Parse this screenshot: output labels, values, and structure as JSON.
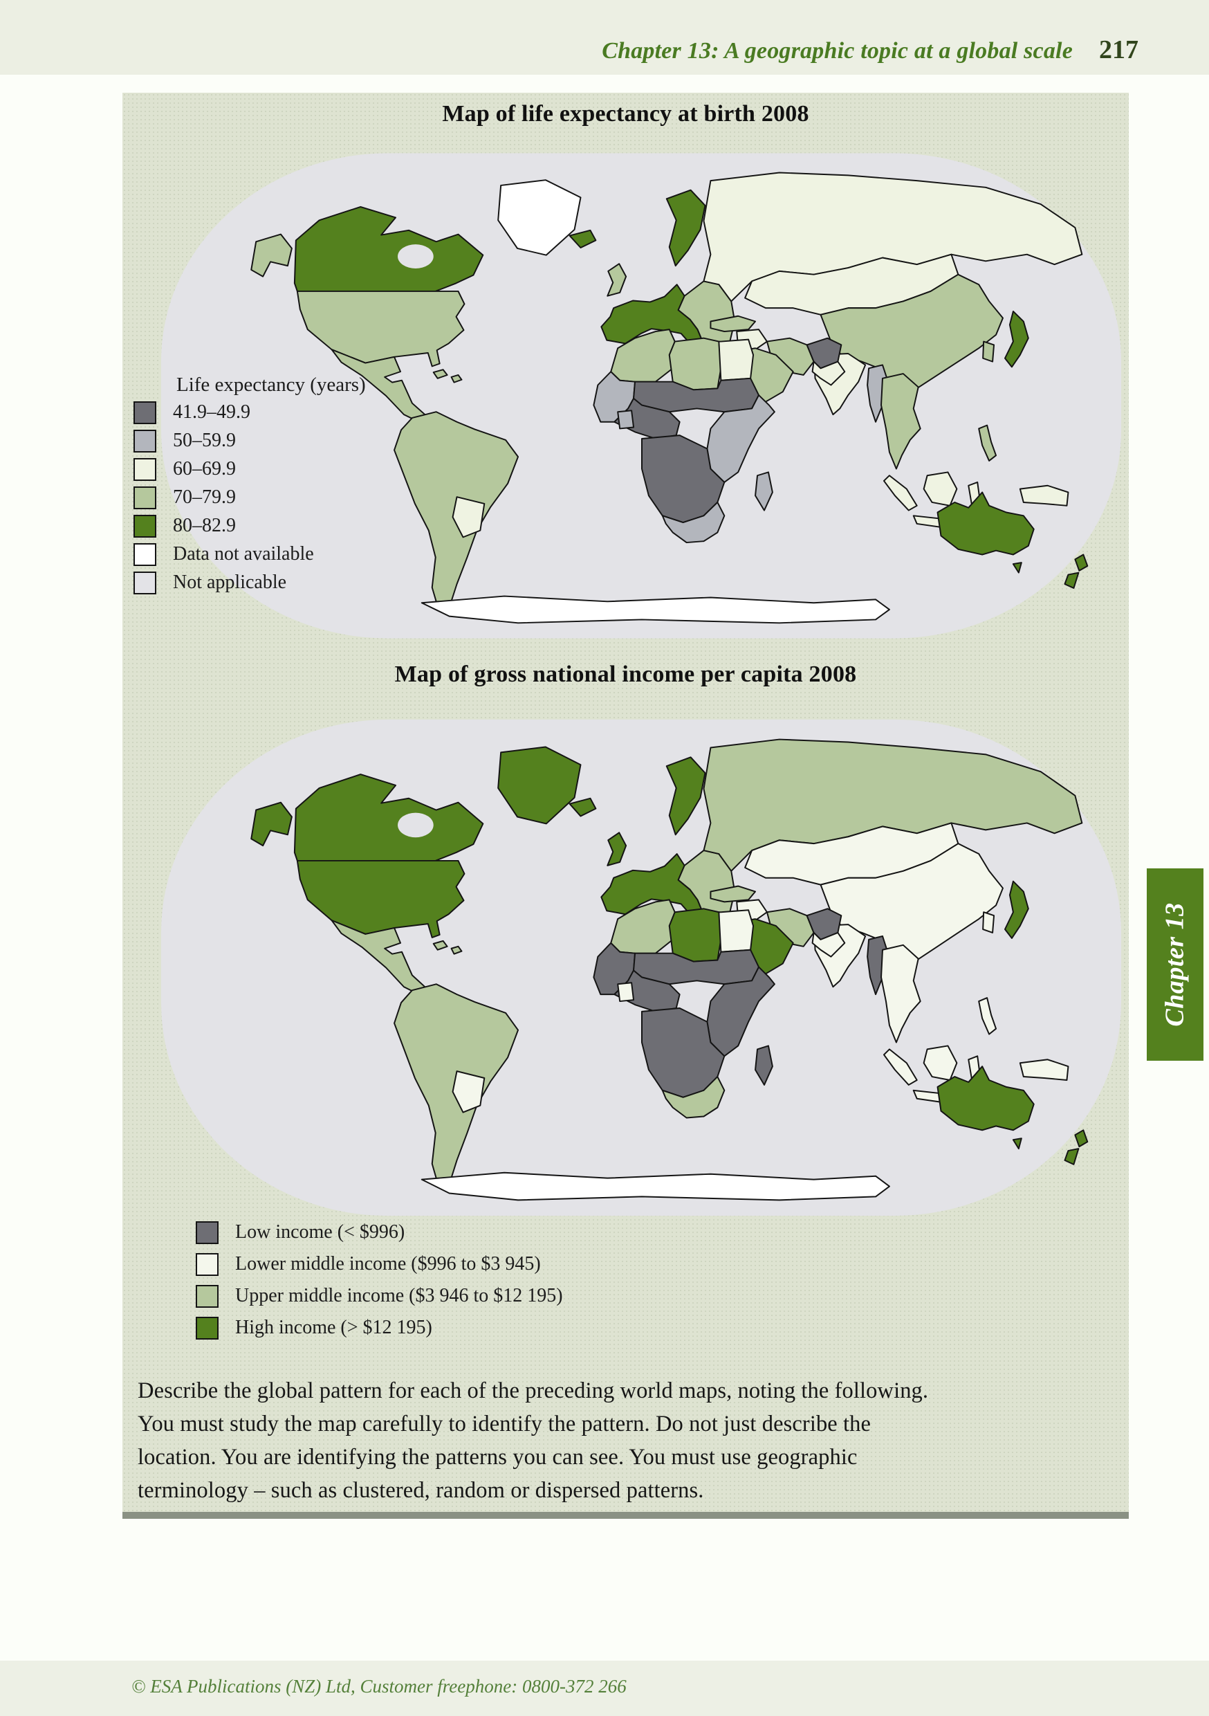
{
  "page": {
    "header": {
      "title": "Chapter 13: A geographic topic at a global scale",
      "page_number": "217"
    },
    "chapter_tab": {
      "label": "Chapter 13"
    },
    "instructions": {
      "lines": [
        "Describe the global pattern for each of the preceding world maps, noting the following.",
        "You must study the map carefully to identify the pattern. Do not just describe the",
        "location. You are identifying the patterns you can see. You must use geographic",
        "terminology – such as clustered, random or dispersed patterns."
      ]
    },
    "footer": {
      "text": "© ESA Publications (NZ) Ltd, Customer freephone: 0800-372 266"
    }
  },
  "colors": {
    "ocean": "#e3e3e7",
    "panel_background": "#dee3d1",
    "accent_green": "#54811e",
    "header_text": "#4a7b22"
  },
  "chart_data": [
    {
      "type": "choropleth_map",
      "title": "Map of life expectancy at birth 2008",
      "legend_title": "Life expectancy (years)",
      "legend_position": "overlay-left",
      "legend": [
        {
          "key": "g1",
          "label": "41.9–49.9",
          "color": "#6e6e74"
        },
        {
          "key": "g2",
          "label": "50–59.9",
          "color": "#b3b6bd"
        },
        {
          "key": "g3",
          "label": "60–69.9",
          "color": "#eff3e2"
        },
        {
          "key": "g4",
          "label": "70–79.9",
          "color": "#b5c89d"
        },
        {
          "key": "g5",
          "label": "80–82.9",
          "color": "#54811e"
        },
        {
          "key": "na",
          "label": "Data not available",
          "color": "#ffffff"
        },
        {
          "key": "x",
          "label": "Not applicable",
          "color": "#e3e3e7"
        }
      ],
      "none_color": "#ffffff",
      "regions": {
        "greenland": "na",
        "canada": "g5",
        "alaska": "g4",
        "usa": "g4",
        "mexico": "g4",
        "caribbean": "g4",
        "south_america": "g4",
        "sa_inner": "g3",
        "europe_west": "g5",
        "uk": "g4",
        "europe_east": "g4",
        "russia": "g3",
        "central_asia": "g3",
        "china": "g4",
        "japan": "g5",
        "korea": "g4",
        "india": "g3",
        "iran": "g4",
        "afghanistan": "g1",
        "pakistan": "g3",
        "turkey": "g4",
        "iraq": "g3",
        "saudi": "g4",
        "maghreb": "g4",
        "libya": "g4",
        "egypt": "g3",
        "west_africa": "g2",
        "sahel": "g1",
        "nigeria": "g1",
        "ghana": "g2",
        "east_africa": "g2",
        "central_africa": "g1",
        "southern_africa": "g2",
        "madagascar": "g2",
        "myanmar": "g2",
        "se_asia": "g4",
        "indonesia": "g3",
        "philippines": "g4",
        "png": "g3",
        "australia": "g5",
        "new_zealand": "g5",
        "antarctica": "none"
      }
    },
    {
      "type": "choropleth_map",
      "title": "Map of gross national income per capita 2008",
      "legend_title": "",
      "legend_position": "below",
      "legend": [
        {
          "key": "low",
          "label": "Low income (< $996)",
          "color": "#6e6e74"
        },
        {
          "key": "lmid",
          "label": "Lower middle income ($996 to $3 945)",
          "color": "#f4f7ec"
        },
        {
          "key": "umid",
          "label": "Upper middle income ($3 946 to $12 195)",
          "color": "#b5c89d"
        },
        {
          "key": "high",
          "label": "High income (> $12 195)",
          "color": "#54811e"
        }
      ],
      "none_color": "#ffffff",
      "regions": {
        "greenland": "high",
        "canada": "high",
        "alaska": "high",
        "usa": "high",
        "mexico": "umid",
        "caribbean": "umid",
        "south_america": "umid",
        "sa_inner": "lmid",
        "europe_west": "high",
        "uk": "high",
        "europe_east": "umid",
        "russia": "umid",
        "central_asia": "lmid",
        "china": "lmid",
        "japan": "high",
        "korea": "lmid",
        "india": "lmid",
        "iran": "umid",
        "afghanistan": "low",
        "pakistan": "lmid",
        "turkey": "umid",
        "iraq": "lmid",
        "saudi": "high",
        "maghreb": "umid",
        "libya": "high",
        "egypt": "lmid",
        "west_africa": "low",
        "sahel": "low",
        "nigeria": "low",
        "ghana": "lmid",
        "east_africa": "low",
        "central_africa": "low",
        "southern_africa": "umid",
        "madagascar": "low",
        "myanmar": "low",
        "se_asia": "lmid",
        "indonesia": "lmid",
        "philippines": "lmid",
        "png": "lmid",
        "australia": "high",
        "new_zealand": "high",
        "antarctica": "none"
      }
    }
  ]
}
